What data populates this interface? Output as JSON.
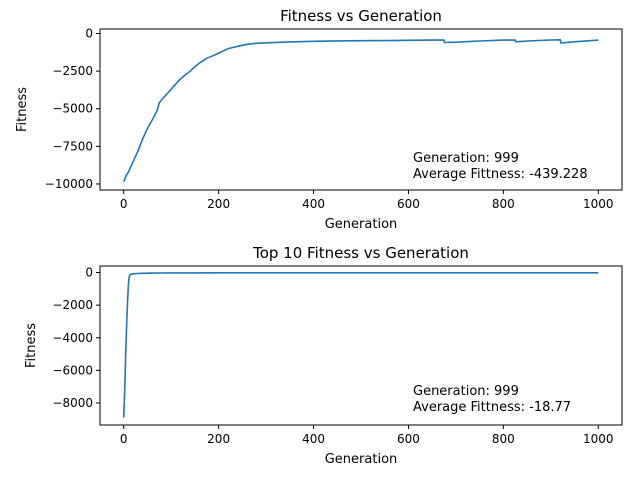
{
  "chart_data": [
    {
      "type": "line",
      "title": "Fitness vs Generation",
      "xlabel": "Generation",
      "ylabel": "Fitness",
      "xlim": [
        -50,
        1050
      ],
      "ylim": [
        -10400,
        300
      ],
      "xticks": [
        0,
        200,
        400,
        600,
        800,
        1000
      ],
      "xtick_labels": [
        "0",
        "200",
        "400",
        "600",
        "800",
        "1000"
      ],
      "yticks": [
        0,
        -2500,
        -5000,
        -7500,
        -10000
      ],
      "ytick_labels": [
        "0",
        "−2500",
        "−5000",
        "−7500",
        "−10000"
      ],
      "grid": false,
      "series": [
        {
          "color": "#1f77b4",
          "x": [
            0,
            5,
            10,
            20,
            30,
            40,
            50,
            60,
            70,
            75,
            80,
            90,
            100,
            110,
            120,
            130,
            140,
            150,
            160,
            175,
            190,
            200,
            210,
            220,
            240,
            260,
            280,
            300,
            350,
            400,
            450,
            500,
            550,
            580,
            600,
            650,
            675,
            676,
            700,
            750,
            800,
            825,
            826,
            850,
            900,
            920,
            921,
            950,
            1000
          ],
          "y": [
            -9850,
            -9450,
            -9200,
            -8500,
            -7800,
            -7000,
            -6300,
            -5750,
            -5150,
            -4600,
            -4400,
            -4050,
            -3700,
            -3350,
            -3000,
            -2750,
            -2500,
            -2200,
            -1950,
            -1650,
            -1450,
            -1300,
            -1150,
            -1000,
            -850,
            -720,
            -650,
            -620,
            -560,
            -520,
            -490,
            -480,
            -470,
            -460,
            -450,
            -440,
            -430,
            -600,
            -580,
            -500,
            -440,
            -430,
            -550,
            -500,
            -430,
            -420,
            -630,
            -550,
            -439
          ]
        }
      ],
      "annotations": [
        "Generation: 999",
        "Average Fittness: -439.228"
      ]
    },
    {
      "type": "line",
      "title": "Top 10 Fitness vs Generation",
      "xlabel": "Generation",
      "ylabel": "Fitness",
      "xlim": [
        -50,
        1050
      ],
      "ylim": [
        -9350,
        400
      ],
      "xticks": [
        0,
        200,
        400,
        600,
        800,
        1000
      ],
      "xtick_labels": [
        "0",
        "200",
        "400",
        "600",
        "800",
        "1000"
      ],
      "yticks": [
        0,
        -2000,
        -4000,
        -6000,
        -8000
      ],
      "ytick_labels": [
        "0",
        "−2000",
        "−4000",
        "−6000",
        "−8000"
      ],
      "grid": false,
      "series": [
        {
          "color": "#1f77b4",
          "x": [
            0,
            2,
            4,
            6,
            8,
            10,
            12,
            15,
            20,
            30,
            40,
            60,
            80,
            100,
            150,
            200,
            300,
            500,
            1000
          ],
          "y": [
            -8900,
            -7300,
            -5200,
            -3300,
            -1900,
            -600,
            -200,
            -110,
            -80,
            -60,
            -45,
            -35,
            -28,
            -25,
            -22,
            -20,
            -19,
            -19,
            -18.77
          ]
        }
      ],
      "annotations": [
        "Generation: 999",
        "Average Fittness: -18.77"
      ]
    }
  ]
}
